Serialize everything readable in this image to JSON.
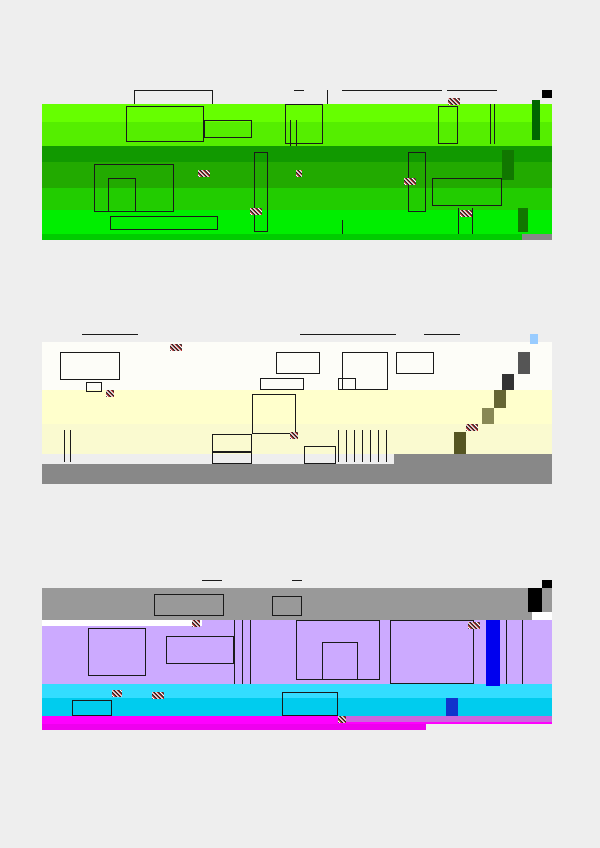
{
  "palette": {
    "background": "#eeeeee",
    "panel1_green_bright": "#66ff00",
    "panel1_green_mid": "#22cc00",
    "panel1_green_dark": "#119900",
    "panel1_green_deep": "#006600",
    "panel2_white": "#fdfdf8",
    "panel2_cream": "#ffffcc",
    "panel2_olive": "#666633",
    "panel2_gray": "#888888",
    "panel3_gray": "#999999",
    "panel3_lavender": "#ccaaff",
    "panel3_blue": "#0000ee",
    "panel3_cyan": "#33ddff",
    "panel3_magenta": "#ff00ff"
  },
  "panels": [
    {
      "name": "green-panel",
      "style": "corrupted-render"
    },
    {
      "name": "cream-panel",
      "style": "corrupted-render"
    },
    {
      "name": "lavender-panel",
      "style": "corrupted-render"
    }
  ]
}
